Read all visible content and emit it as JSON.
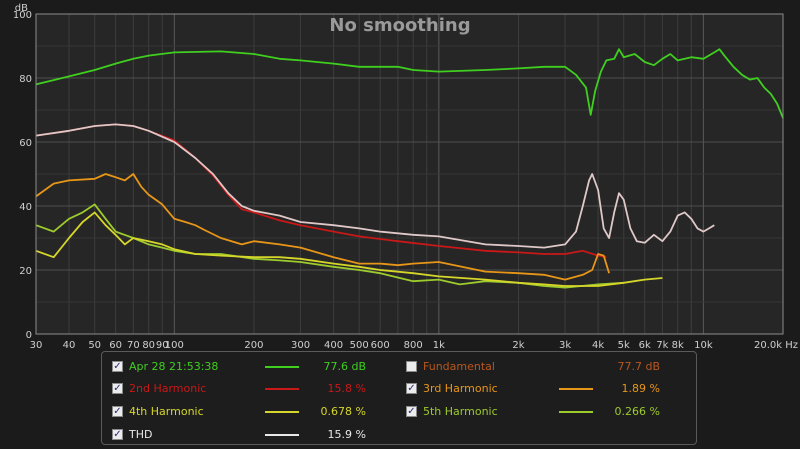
{
  "chart_data": {
    "type": "line",
    "title": "No smoothing",
    "ylabel": "dB",
    "xlabel": "Hz",
    "x_scale": "log",
    "xlim": [
      30,
      20000
    ],
    "ylim": [
      0,
      100
    ],
    "grid": true,
    "y_ticks": [
      "0",
      "20",
      "40",
      "60",
      "80",
      "100"
    ],
    "x_ticks": [
      {
        "v": 30,
        "label": "30"
      },
      {
        "v": 40,
        "label": "40"
      },
      {
        "v": 50,
        "label": "50"
      },
      {
        "v": 60,
        "label": "60"
      },
      {
        "v": 70,
        "label": "70"
      },
      {
        "v": 80,
        "label": "80"
      },
      {
        "v": 90,
        "label": "90"
      },
      {
        "v": 100,
        "label": "100"
      },
      {
        "v": 200,
        "label": "200"
      },
      {
        "v": 300,
        "label": "300"
      },
      {
        "v": 400,
        "label": "400"
      },
      {
        "v": 500,
        "label": "500"
      },
      {
        "v": 600,
        "label": "600"
      },
      {
        "v": 800,
        "label": "800"
      },
      {
        "v": 1000,
        "label": "1k"
      },
      {
        "v": 2000,
        "label": "2k"
      },
      {
        "v": 3000,
        "label": "3k"
      },
      {
        "v": 4000,
        "label": "4k"
      },
      {
        "v": 5000,
        "label": "5k"
      },
      {
        "v": 6000,
        "label": "6k"
      },
      {
        "v": 7000,
        "label": "7k"
      },
      {
        "v": 8000,
        "label": "8k"
      },
      {
        "v": 10000,
        "label": "10k"
      },
      {
        "v": 20000,
        "label": "20.0k Hz"
      }
    ],
    "series": [
      {
        "name": "Apr 28 21:53:38",
        "color": "#3fcf1f",
        "points": [
          [
            30,
            78
          ],
          [
            40,
            80.5
          ],
          [
            50,
            82.5
          ],
          [
            60,
            84.5
          ],
          [
            70,
            86
          ],
          [
            80,
            87
          ],
          [
            100,
            88
          ],
          [
            150,
            88.3
          ],
          [
            200,
            87.5
          ],
          [
            250,
            86
          ],
          [
            300,
            85.5
          ],
          [
            400,
            84.5
          ],
          [
            500,
            83.5
          ],
          [
            700,
            83.5
          ],
          [
            800,
            82.5
          ],
          [
            1000,
            82
          ],
          [
            1500,
            82.5
          ],
          [
            2000,
            83
          ],
          [
            2500,
            83.5
          ],
          [
            3000,
            83.5
          ],
          [
            3300,
            81
          ],
          [
            3600,
            77
          ],
          [
            3750,
            68.5
          ],
          [
            3900,
            76
          ],
          [
            4100,
            82
          ],
          [
            4300,
            85.5
          ],
          [
            4600,
            86
          ],
          [
            4800,
            89
          ],
          [
            5000,
            86.5
          ],
          [
            5500,
            87.5
          ],
          [
            6000,
            85
          ],
          [
            6500,
            84
          ],
          [
            7000,
            86
          ],
          [
            7500,
            87.5
          ],
          [
            8000,
            85.5
          ],
          [
            9000,
            86.5
          ],
          [
            10000,
            86
          ],
          [
            11000,
            88
          ],
          [
            11500,
            89
          ],
          [
            12000,
            87
          ],
          [
            13000,
            83.5
          ],
          [
            14000,
            81
          ],
          [
            15000,
            79.5
          ],
          [
            16000,
            80
          ],
          [
            17000,
            77
          ],
          [
            18000,
            75
          ],
          [
            19000,
            72
          ],
          [
            20000,
            67.5
          ]
        ]
      },
      {
        "name": "2nd Harmonic",
        "color": "#c81818",
        "points": [
          [
            30,
            62
          ],
          [
            40,
            63.5
          ],
          [
            50,
            65
          ],
          [
            60,
            65.5
          ],
          [
            70,
            65
          ],
          [
            80,
            63.5
          ],
          [
            100,
            60.5
          ],
          [
            120,
            55
          ],
          [
            140,
            49.5
          ],
          [
            160,
            43.5
          ],
          [
            180,
            39
          ],
          [
            200,
            38
          ],
          [
            250,
            35.5
          ],
          [
            300,
            34
          ],
          [
            400,
            32
          ],
          [
            500,
            30.5
          ],
          [
            700,
            29
          ],
          [
            1000,
            27.5
          ],
          [
            1500,
            26
          ],
          [
            2000,
            25.5
          ],
          [
            2500,
            25
          ],
          [
            3000,
            25
          ],
          [
            3500,
            26
          ],
          [
            4000,
            24.5
          ],
          [
            4300,
            24
          ]
        ]
      },
      {
        "name": "3rd Harmonic",
        "color": "#e89618",
        "points": [
          [
            30,
            43
          ],
          [
            35,
            47
          ],
          [
            40,
            48
          ],
          [
            50,
            48.5
          ],
          [
            55,
            50
          ],
          [
            60,
            49
          ],
          [
            65,
            48
          ],
          [
            70,
            50
          ],
          [
            75,
            46
          ],
          [
            80,
            43.5
          ],
          [
            85,
            42
          ],
          [
            90,
            40.5
          ],
          [
            100,
            36
          ],
          [
            110,
            35
          ],
          [
            120,
            34
          ],
          [
            130,
            32.5
          ],
          [
            150,
            30
          ],
          [
            180,
            28
          ],
          [
            200,
            29
          ],
          [
            250,
            28
          ],
          [
            300,
            27
          ],
          [
            400,
            24
          ],
          [
            500,
            22
          ],
          [
            600,
            22
          ],
          [
            700,
            21.5
          ],
          [
            800,
            22
          ],
          [
            1000,
            22.5
          ],
          [
            1500,
            19.5
          ],
          [
            2000,
            19
          ],
          [
            2500,
            18.5
          ],
          [
            3000,
            17
          ],
          [
            3500,
            18.5
          ],
          [
            3800,
            20
          ],
          [
            4000,
            25
          ],
          [
            4200,
            24.5
          ],
          [
            4400,
            19
          ]
        ]
      },
      {
        "name": "4th Harmonic",
        "color": "#d6d62a",
        "points": [
          [
            30,
            26
          ],
          [
            35,
            24
          ],
          [
            40,
            30
          ],
          [
            45,
            35
          ],
          [
            50,
            38
          ],
          [
            55,
            34
          ],
          [
            60,
            31
          ],
          [
            65,
            28
          ],
          [
            70,
            30
          ],
          [
            80,
            29
          ],
          [
            90,
            28
          ],
          [
            100,
            26.5
          ],
          [
            120,
            25
          ],
          [
            150,
            24.5
          ],
          [
            200,
            24
          ],
          [
            250,
            24
          ],
          [
            300,
            23.5
          ],
          [
            400,
            22
          ],
          [
            500,
            21
          ],
          [
            600,
            20
          ],
          [
            800,
            19
          ],
          [
            1000,
            18
          ],
          [
            1500,
            17
          ],
          [
            2000,
            16
          ],
          [
            2500,
            15.5
          ],
          [
            3000,
            15
          ],
          [
            4000,
            15
          ],
          [
            5000,
            16
          ],
          [
            6000,
            17
          ],
          [
            7000,
            17.5
          ]
        ]
      },
      {
        "name": "5th Harmonic",
        "color": "#9ccb2c",
        "points": [
          [
            30,
            34
          ],
          [
            35,
            32
          ],
          [
            40,
            36
          ],
          [
            45,
            38
          ],
          [
            50,
            40.5
          ],
          [
            55,
            36
          ],
          [
            60,
            32
          ],
          [
            70,
            30
          ],
          [
            80,
            28
          ],
          [
            90,
            27
          ],
          [
            100,
            26
          ],
          [
            120,
            25
          ],
          [
            150,
            25
          ],
          [
            200,
            23.5
          ],
          [
            250,
            23
          ],
          [
            300,
            22.5
          ],
          [
            400,
            21
          ],
          [
            500,
            20
          ],
          [
            600,
            19
          ],
          [
            800,
            16.5
          ],
          [
            1000,
            17
          ],
          [
            1200,
            15.5
          ],
          [
            1500,
            16.5
          ],
          [
            2000,
            16
          ],
          [
            2500,
            15
          ],
          [
            3000,
            14.5
          ],
          [
            4000,
            15.5
          ],
          [
            5000,
            16
          ]
        ]
      },
      {
        "name": "THD",
        "color": "#e0c8c8",
        "points": [
          [
            30,
            62
          ],
          [
            40,
            63.5
          ],
          [
            50,
            65
          ],
          [
            60,
            65.5
          ],
          [
            70,
            65
          ],
          [
            80,
            63.5
          ],
          [
            100,
            60
          ],
          [
            120,
            55
          ],
          [
            140,
            50
          ],
          [
            160,
            44
          ],
          [
            180,
            40
          ],
          [
            200,
            38.5
          ],
          [
            250,
            37
          ],
          [
            300,
            35
          ],
          [
            400,
            34
          ],
          [
            500,
            33
          ],
          [
            600,
            32
          ],
          [
            800,
            31
          ],
          [
            1000,
            30.5
          ],
          [
            1500,
            28
          ],
          [
            2000,
            27.5
          ],
          [
            2500,
            27
          ],
          [
            3000,
            28
          ],
          [
            3300,
            32
          ],
          [
            3500,
            40
          ],
          [
            3700,
            48
          ],
          [
            3800,
            50
          ],
          [
            4000,
            45
          ],
          [
            4200,
            33
          ],
          [
            4400,
            30
          ],
          [
            4600,
            38
          ],
          [
            4800,
            44
          ],
          [
            5000,
            42
          ],
          [
            5300,
            33
          ],
          [
            5600,
            29
          ],
          [
            6000,
            28.5
          ],
          [
            6500,
            31
          ],
          [
            7000,
            29
          ],
          [
            7500,
            32
          ],
          [
            8000,
            37
          ],
          [
            8500,
            38
          ],
          [
            9000,
            36
          ],
          [
            9500,
            33
          ],
          [
            10000,
            32
          ],
          [
            10500,
            33
          ],
          [
            11000,
            34
          ]
        ]
      }
    ]
  },
  "legend": [
    {
      "label": "Apr 28 21:53:38",
      "value": "77.6 dB",
      "color": "#3fcf1f",
      "checked": true
    },
    {
      "label": "Fundamental",
      "value": "77.7 dB",
      "color": "#b8571e",
      "checked": false
    },
    {
      "label": "2nd Harmonic",
      "value": "15.8 %",
      "color": "#c81818",
      "checked": true
    },
    {
      "label": "3rd Harmonic",
      "value": "1.89 %",
      "color": "#e89618",
      "checked": true
    },
    {
      "label": "4th Harmonic",
      "value": "0.678 %",
      "color": "#d6d62a",
      "checked": true
    },
    {
      "label": "5th Harmonic",
      "value": "0.266 %",
      "color": "#9ccb2c",
      "checked": true
    },
    {
      "label": "THD",
      "value": "15.9 %",
      "color": "#e8e8e8",
      "checked": true
    }
  ]
}
